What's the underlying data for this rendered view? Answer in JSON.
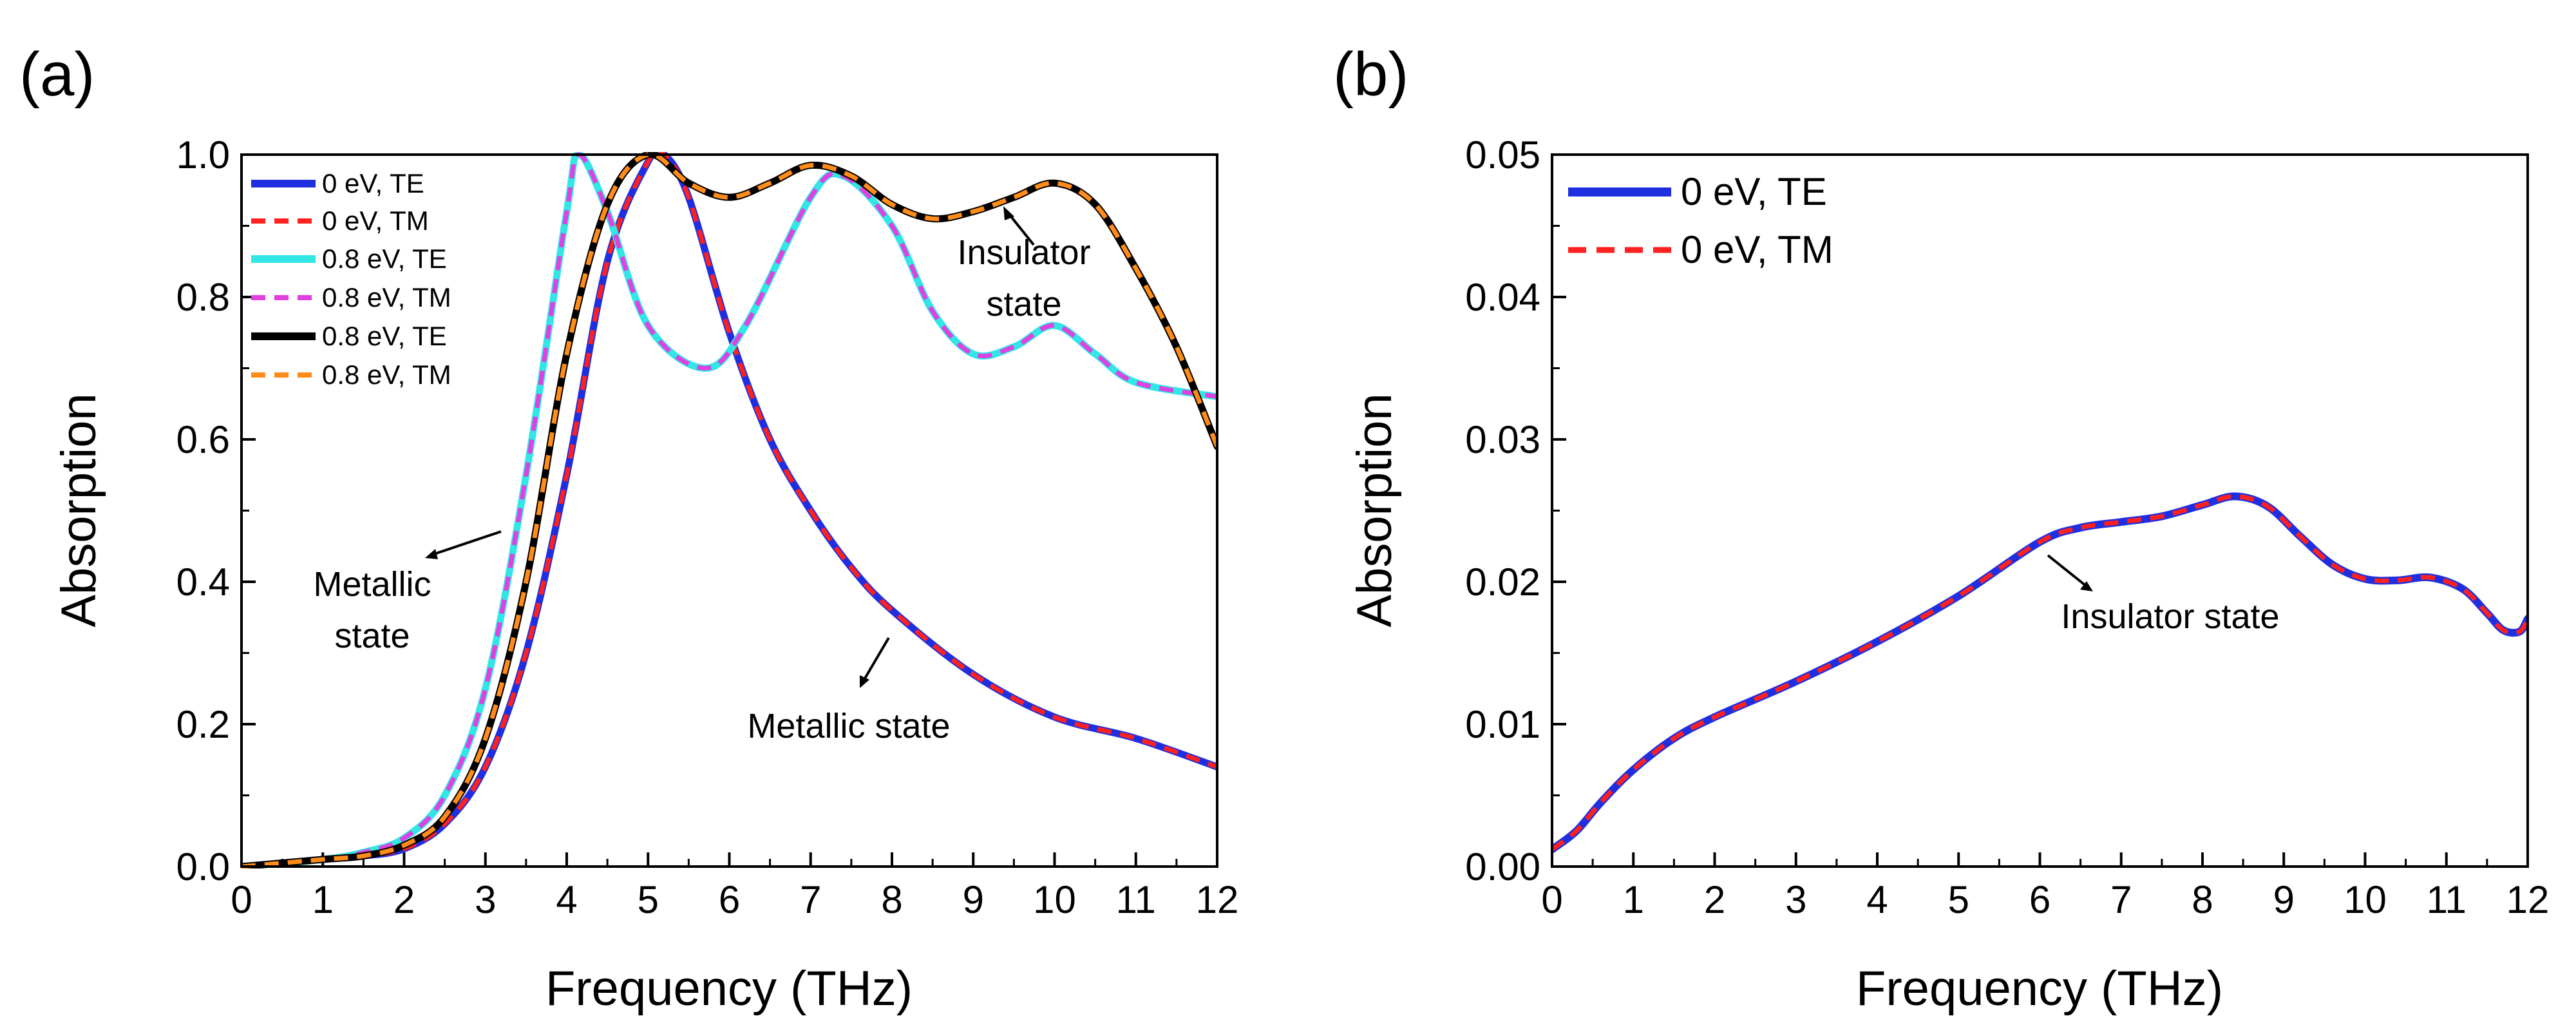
{
  "chart_data": [
    {
      "type": "line",
      "panel_label": "(a)",
      "xlabel": "Frequency (THz)",
      "ylabel": "Absorption",
      "xlim": [
        0,
        12
      ],
      "ylim": [
        0,
        1.0
      ],
      "xticks": [
        "0",
        "1",
        "2",
        "3",
        "4",
        "5",
        "6",
        "7",
        "8",
        "9",
        "10",
        "11",
        "12"
      ],
      "yticks": [
        "0.0",
        "0.2",
        "0.4",
        "0.6",
        "0.8",
        "1.0"
      ],
      "legend_position": "top-left",
      "series": [
        {
          "name": "0 eV, TE",
          "color": "#1f2fe0",
          "style": "solid",
          "x": [
            0,
            1,
            1.5,
            2,
            2.5,
            3,
            3.5,
            4,
            4.5,
            5,
            5.2,
            5.5,
            6,
            6.5,
            7,
            7.5,
            8,
            9,
            10,
            11,
            12
          ],
          "y": [
            0,
            0.01,
            0.015,
            0.025,
            0.06,
            0.14,
            0.3,
            0.55,
            0.85,
            0.99,
            1.0,
            0.94,
            0.75,
            0.6,
            0.5,
            0.42,
            0.36,
            0.27,
            0.21,
            0.18,
            0.14
          ]
        },
        {
          "name": "0 eV, TM",
          "color": "#ff2020",
          "style": "dashed",
          "x": [
            0,
            1,
            1.5,
            2,
            2.5,
            3,
            3.5,
            4,
            4.5,
            5,
            5.2,
            5.5,
            6,
            6.5,
            7,
            7.5,
            8,
            9,
            10,
            11,
            12
          ],
          "y": [
            0,
            0.01,
            0.015,
            0.025,
            0.06,
            0.14,
            0.3,
            0.55,
            0.85,
            0.99,
            1.0,
            0.94,
            0.75,
            0.6,
            0.5,
            0.42,
            0.36,
            0.27,
            0.21,
            0.18,
            0.14
          ]
        },
        {
          "name": "0.8 eV, TE",
          "color": "#33e6e6",
          "style": "solid",
          "x": [
            0,
            1,
            1.5,
            2,
            2.5,
            3,
            3.5,
            4,
            4.15,
            4.5,
            5,
            5.7,
            6.2,
            7,
            7.4,
            8,
            8.5,
            9,
            9.5,
            10,
            10.5,
            11,
            12
          ],
          "y": [
            0,
            0.01,
            0.02,
            0.04,
            0.1,
            0.25,
            0.55,
            0.92,
            1.0,
            0.92,
            0.76,
            0.7,
            0.76,
            0.94,
            0.97,
            0.9,
            0.78,
            0.72,
            0.73,
            0.76,
            0.72,
            0.68,
            0.66
          ]
        },
        {
          "name": "0.8 eV, TM",
          "color": "#e040e0",
          "style": "dashed",
          "x": [
            0,
            1,
            1.5,
            2,
            2.5,
            3,
            3.5,
            4,
            4.15,
            4.5,
            5,
            5.7,
            6.2,
            7,
            7.4,
            8,
            8.5,
            9,
            9.5,
            10,
            10.5,
            11,
            12
          ],
          "y": [
            0,
            0.01,
            0.02,
            0.04,
            0.1,
            0.25,
            0.55,
            0.92,
            1.0,
            0.92,
            0.76,
            0.7,
            0.76,
            0.94,
            0.97,
            0.9,
            0.78,
            0.72,
            0.73,
            0.76,
            0.72,
            0.68,
            0.66
          ]
        },
        {
          "name": "0.8 eV, TE",
          "color": "#000000",
          "style": "solid",
          "x": [
            0,
            1,
            1.5,
            2,
            2.5,
            3,
            3.5,
            4,
            4.5,
            5,
            5.5,
            6,
            6.5,
            7,
            7.5,
            8,
            8.5,
            9,
            9.5,
            10,
            10.5,
            11,
            11.5,
            12
          ],
          "y": [
            0,
            0.01,
            0.015,
            0.03,
            0.07,
            0.18,
            0.4,
            0.72,
            0.93,
            1.0,
            0.96,
            0.94,
            0.96,
            0.985,
            0.97,
            0.93,
            0.91,
            0.92,
            0.94,
            0.96,
            0.93,
            0.84,
            0.73,
            0.59
          ]
        },
        {
          "name": "0.8 eV, TM",
          "color": "#ff8c1a",
          "style": "dashed",
          "x": [
            0,
            1,
            1.5,
            2,
            2.5,
            3,
            3.5,
            4,
            4.5,
            5,
            5.5,
            6,
            6.5,
            7,
            7.5,
            8,
            8.5,
            9,
            9.5,
            10,
            10.5,
            11,
            11.5,
            12
          ],
          "y": [
            0,
            0.01,
            0.015,
            0.03,
            0.07,
            0.18,
            0.4,
            0.72,
            0.93,
            1.0,
            0.96,
            0.94,
            0.96,
            0.985,
            0.97,
            0.93,
            0.91,
            0.92,
            0.94,
            0.96,
            0.93,
            0.84,
            0.73,
            0.59
          ]
        }
      ],
      "annotations": [
        {
          "lines": [
            "Insulator",
            "state"
          ]
        },
        {
          "lines": [
            "Metallic",
            "state"
          ]
        },
        {
          "lines": [
            "Metallic state"
          ]
        }
      ]
    },
    {
      "type": "line",
      "panel_label": "(b)",
      "xlabel": "Frequency (THz)",
      "ylabel": "Absorption",
      "xlim": [
        0,
        12
      ],
      "ylim": [
        0,
        0.05
      ],
      "xticks": [
        "0",
        "1",
        "2",
        "3",
        "4",
        "5",
        "6",
        "7",
        "8",
        "9",
        "10",
        "11",
        "12"
      ],
      "yticks": [
        "0.00",
        "0.01",
        "0.02",
        "0.03",
        "0.04",
        "0.05"
      ],
      "legend_position": "top-left",
      "series": [
        {
          "name": "0 eV, TE",
          "color": "#1f2fe0",
          "style": "solid",
          "x": [
            0,
            0.3,
            0.6,
            1,
            1.5,
            2,
            3,
            4,
            5,
            6,
            6.5,
            7,
            7.5,
            8,
            8.4,
            8.8,
            9.2,
            9.6,
            10,
            10.4,
            10.8,
            11.2,
            11.5,
            11.7,
            11.9,
            12
          ],
          "y": [
            0.0012,
            0.0025,
            0.0045,
            0.0068,
            0.009,
            0.0105,
            0.013,
            0.0158,
            0.019,
            0.0228,
            0.0238,
            0.0242,
            0.0246,
            0.0254,
            0.026,
            0.0253,
            0.0232,
            0.0212,
            0.0202,
            0.0201,
            0.0203,
            0.0195,
            0.0178,
            0.0166,
            0.0165,
            0.0174
          ]
        },
        {
          "name": "0 eV, TM",
          "color": "#ff2020",
          "style": "dashed",
          "x": [
            0,
            0.3,
            0.6,
            1,
            1.5,
            2,
            3,
            4,
            5,
            6,
            6.5,
            7,
            7.5,
            8,
            8.4,
            8.8,
            9.2,
            9.6,
            10,
            10.4,
            10.8,
            11.2,
            11.5,
            11.7,
            11.9,
            12
          ],
          "y": [
            0.0012,
            0.0025,
            0.0045,
            0.0068,
            0.009,
            0.0105,
            0.013,
            0.0158,
            0.019,
            0.0228,
            0.0238,
            0.0242,
            0.0246,
            0.0254,
            0.026,
            0.0253,
            0.0232,
            0.0212,
            0.0202,
            0.0201,
            0.0203,
            0.0195,
            0.0178,
            0.0166,
            0.0165,
            0.0174
          ]
        }
      ],
      "annotations": [
        {
          "lines": [
            "Insulator state"
          ]
        }
      ]
    }
  ]
}
